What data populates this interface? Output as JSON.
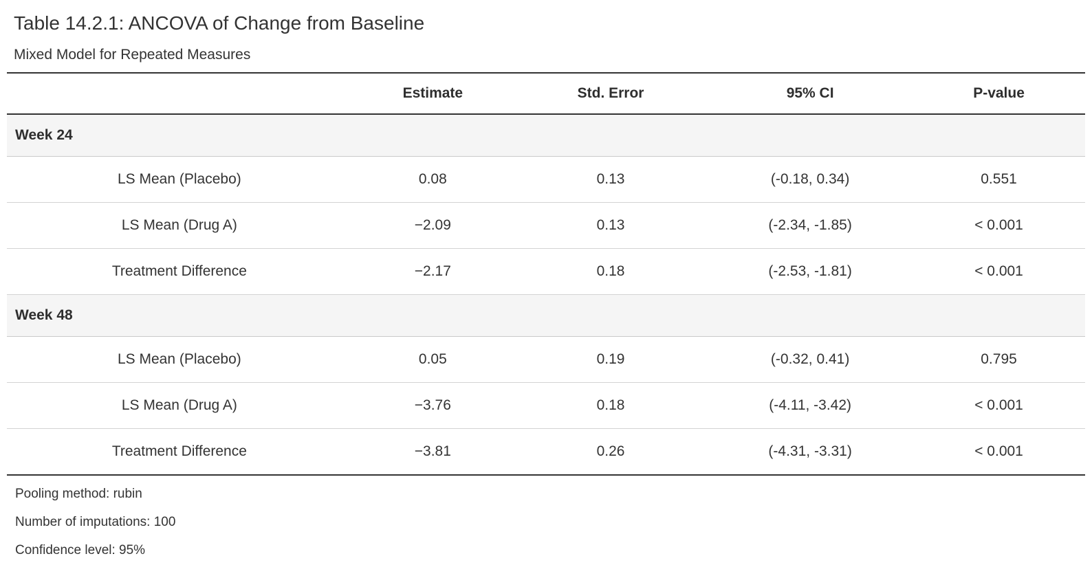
{
  "table": {
    "title": "Table 14.2.1: ANCOVA of Change from Baseline",
    "subtitle": "Mixed Model for Repeated Measures",
    "columns": {
      "stub": "",
      "estimate": "Estimate",
      "std_error": "Std. Error",
      "ci": "95% CI",
      "p_value": "P-value"
    },
    "groups": [
      {
        "label": "Week 24",
        "rows": [
          {
            "label": "LS Mean (Placebo)",
            "estimate": "0.08",
            "std_error": "0.13",
            "ci": "(-0.18, 0.34)",
            "p_value": "0.551"
          },
          {
            "label": "LS Mean (Drug A)",
            "estimate": "−2.09",
            "std_error": "0.13",
            "ci": "(-2.34, -1.85)",
            "p_value": "< 0.001"
          },
          {
            "label": "Treatment Difference",
            "estimate": "−2.17",
            "std_error": "0.18",
            "ci": "(-2.53, -1.81)",
            "p_value": "< 0.001"
          }
        ]
      },
      {
        "label": "Week 48",
        "rows": [
          {
            "label": "LS Mean (Placebo)",
            "estimate": "0.05",
            "std_error": "0.19",
            "ci": "(-0.32, 0.41)",
            "p_value": "0.795"
          },
          {
            "label": "LS Mean (Drug A)",
            "estimate": "−3.76",
            "std_error": "0.18",
            "ci": "(-4.11, -3.42)",
            "p_value": "< 0.001"
          },
          {
            "label": "Treatment Difference",
            "estimate": "−3.81",
            "std_error": "0.26",
            "ci": "(-4.31, -3.31)",
            "p_value": "< 0.001"
          }
        ]
      }
    ],
    "footnotes": [
      "Pooling method: rubin",
      "Number of imputations: 100",
      "Confidence level: 95%"
    ],
    "colors": {
      "heavy_border": "#333333",
      "light_border": "#d3d3d3",
      "group_row_bg": "#f5f5f5",
      "text": "#333333"
    }
  }
}
